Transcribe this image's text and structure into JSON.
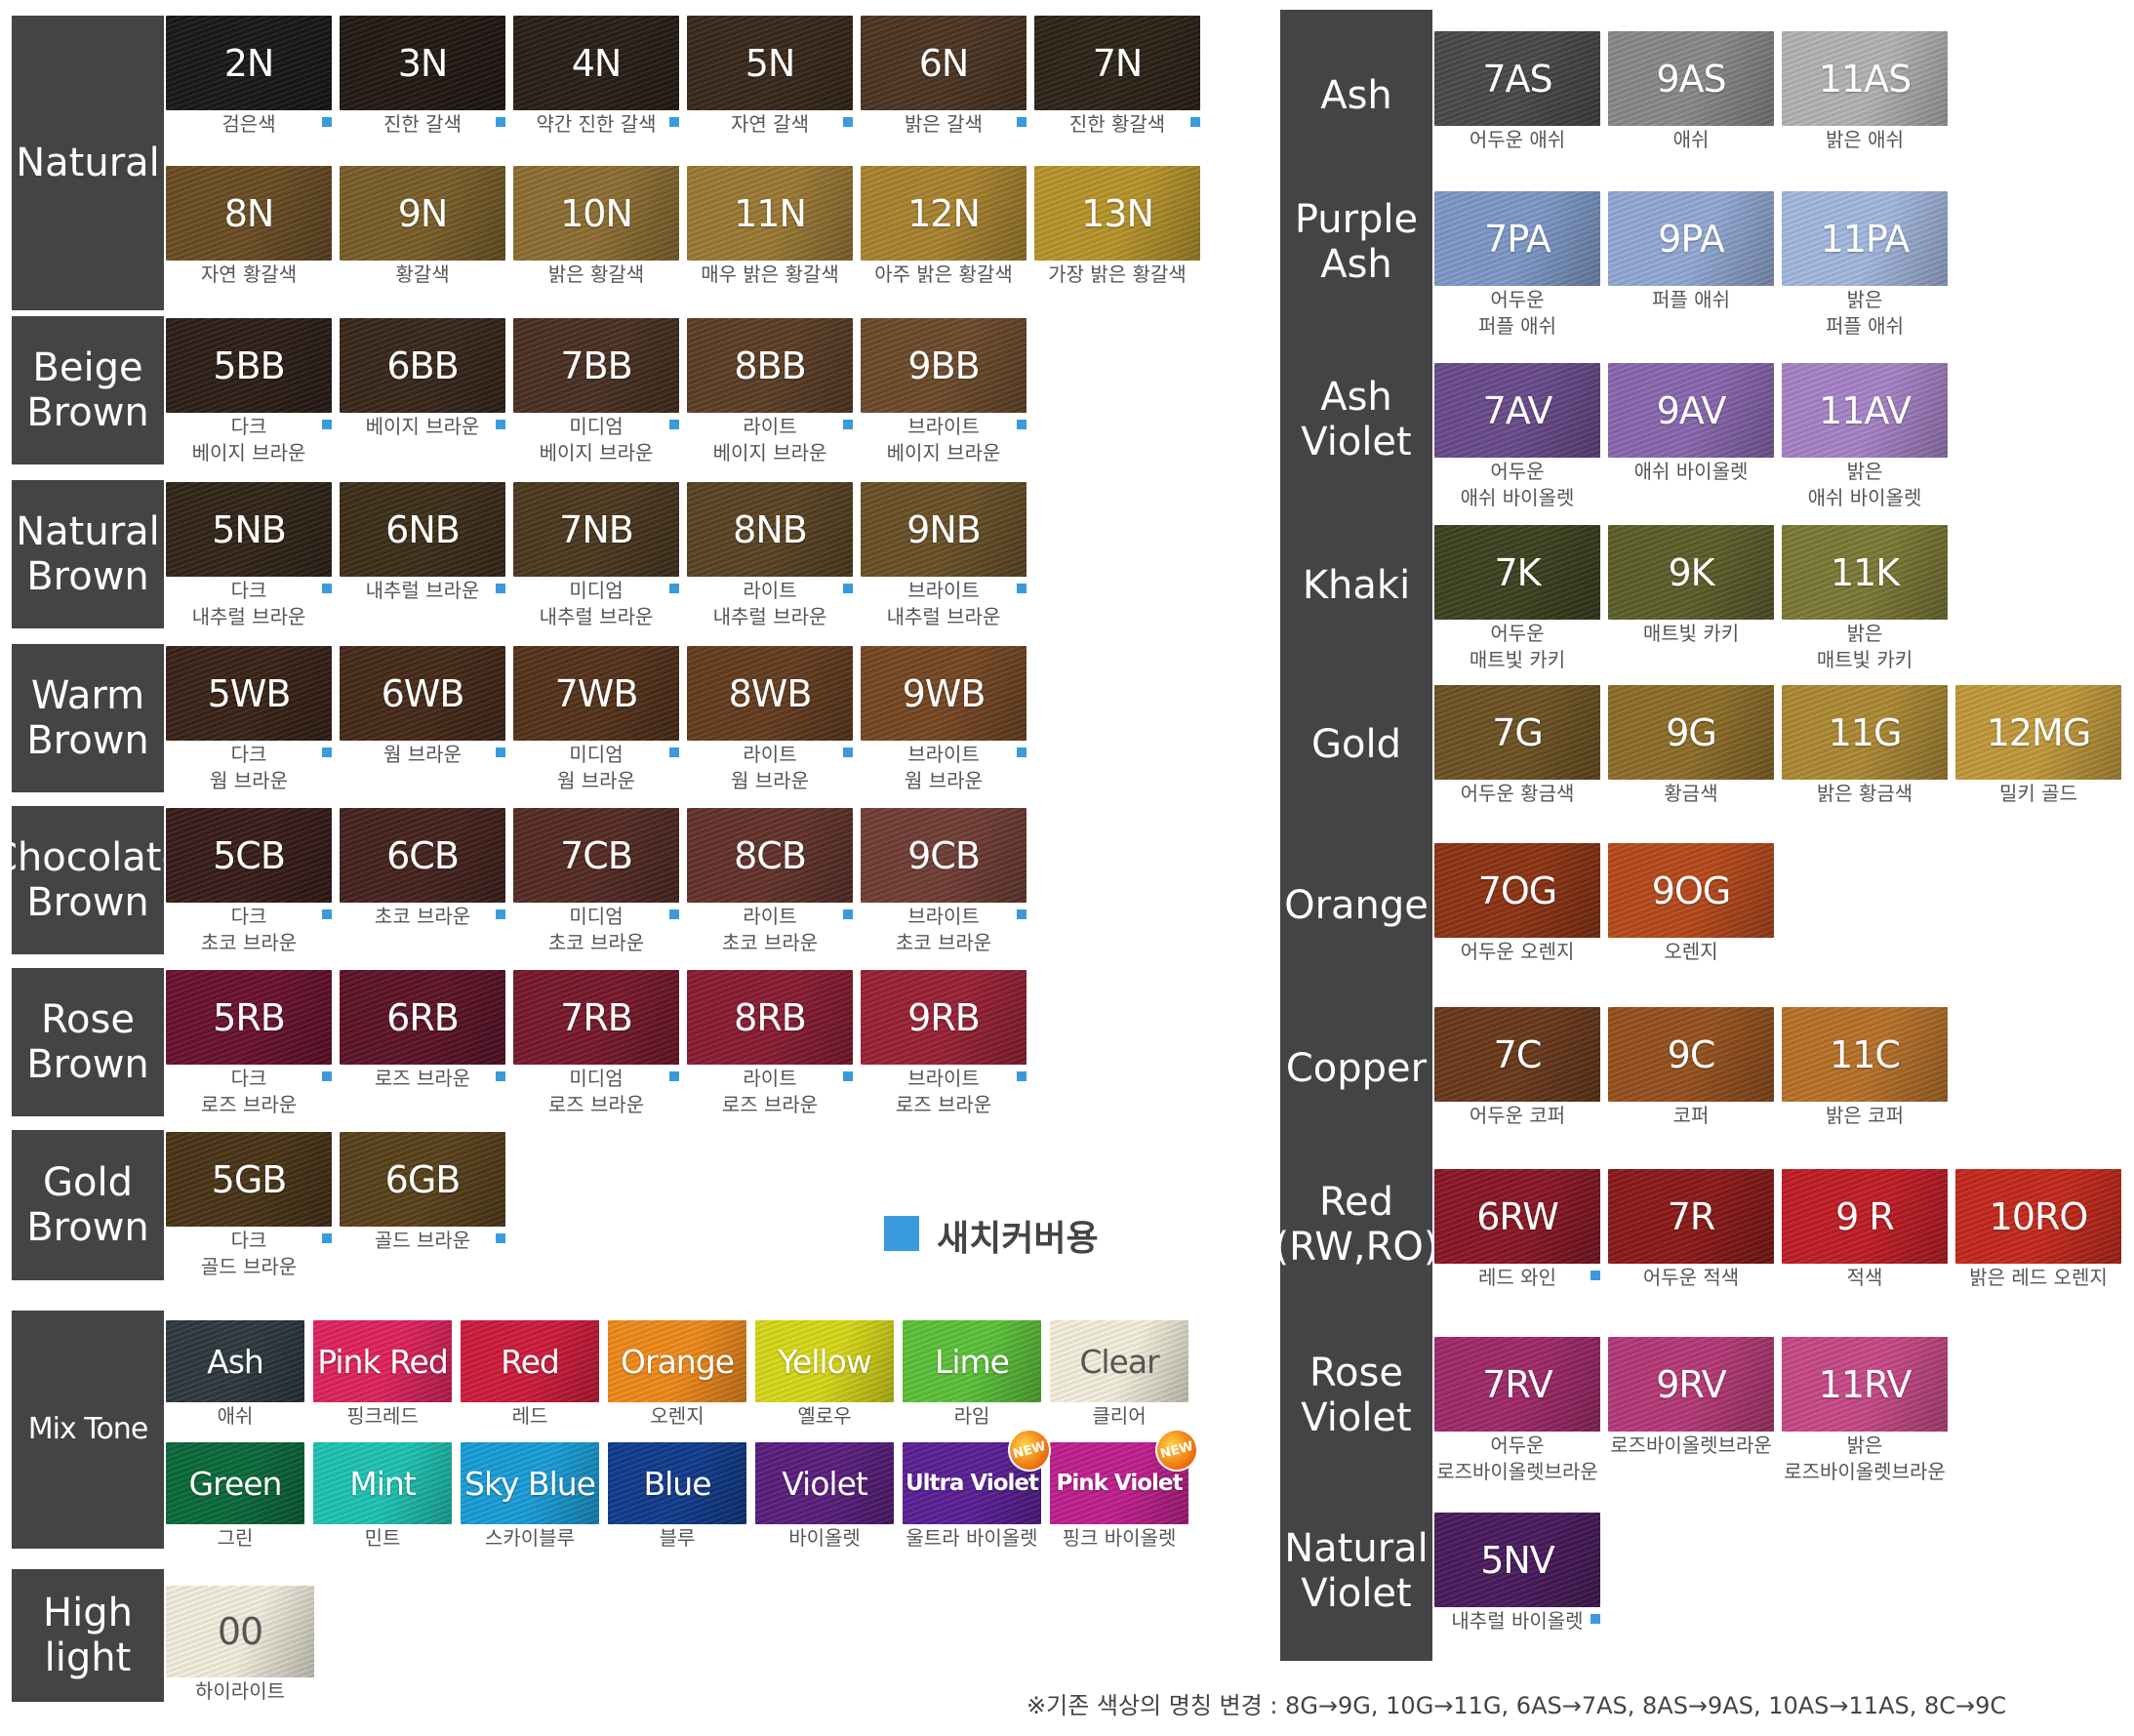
{
  "left_groups": [
    {
      "label": "Natural",
      "swatches": [
        {
          "code": "2N",
          "name": "검은색",
          "c": "#1a1a1a",
          "m": true
        },
        {
          "code": "3N",
          "name": "진한 갈색",
          "c": "#241a15",
          "m": true
        },
        {
          "code": "4N",
          "name": "약간 진한 갈색",
          "c": "#2c2018",
          "m": true
        },
        {
          "code": "5N",
          "name": "자연 갈색",
          "c": "#3b2a1c",
          "m": true
        },
        {
          "code": "6N",
          "name": "밝은 갈색",
          "c": "#4d3624",
          "m": true
        },
        {
          "code": "7N",
          "name": "진한 황갈색",
          "c": "#2f2519",
          "m": true
        },
        {
          "code": "8N",
          "name": "자연 황갈색",
          "c": "#6a4e25",
          "m": false
        },
        {
          "code": "9N",
          "name": "황갈색",
          "c": "#7a5f2a",
          "m": false
        },
        {
          "code": "10N",
          "name": "밝은 황갈색",
          "c": "#8e6f33",
          "m": false
        },
        {
          "code": "11N",
          "name": "매우 밝은 황갈색",
          "c": "#9c7a35",
          "m": false
        },
        {
          "code": "12N",
          "name": "아주 밝은 황갈색",
          "c": "#a98430",
          "m": false
        },
        {
          "code": "13N",
          "name": "가장 밝은 황갈색",
          "c": "#b8952c",
          "m": false
        }
      ]
    },
    {
      "label": "Beige\nBrown",
      "swatches": [
        {
          "code": "5BB",
          "name": "다크\n베이지 브라운",
          "c": "#2e2018",
          "m": true
        },
        {
          "code": "6BB",
          "name": "베이지 브라운",
          "c": "#3a281c",
          "m": true
        },
        {
          "code": "7BB",
          "name": "미디엄\n베이지 브라운",
          "c": "#4a3222",
          "m": true
        },
        {
          "code": "8BB",
          "name": "라이트\n베이지 브라운",
          "c": "#5c3f27",
          "m": true
        },
        {
          "code": "9BB",
          "name": "브라이트\n베이지 브라운",
          "c": "#6e4b2c",
          "m": true
        }
      ]
    },
    {
      "label": "Natural\nBrown",
      "swatches": [
        {
          "code": "5NB",
          "name": "다크\n내추럴 브라운",
          "c": "#33261a",
          "m": true
        },
        {
          "code": "6NB",
          "name": "내추럴 브라운",
          "c": "#3f2f1c",
          "m": true
        },
        {
          "code": "7NB",
          "name": "미디엄\n내추럴 브라운",
          "c": "#4c3920",
          "m": true
        },
        {
          "code": "8NB",
          "name": "라이트\n내추럴 브라운",
          "c": "#5a4424",
          "m": true
        },
        {
          "code": "9NB",
          "name": "브라이트\n내추럴 브라운",
          "c": "#6a5128",
          "m": true
        }
      ]
    },
    {
      "label": "Warm\nBrown",
      "swatches": [
        {
          "code": "5WB",
          "name": "다크\n웜 브라운",
          "c": "#3a2418",
          "m": true
        },
        {
          "code": "6WB",
          "name": "웜 브라운",
          "c": "#472b1a",
          "m": true
        },
        {
          "code": "7WB",
          "name": "미디엄\n웜 브라운",
          "c": "#56331c",
          "m": true
        },
        {
          "code": "8WB",
          "name": "라이트\n웜 브라운",
          "c": "#653d20",
          "m": true
        },
        {
          "code": "9WB",
          "name": "브라이트\n웜 브라운",
          "c": "#764824",
          "m": true
        }
      ]
    },
    {
      "label": "Chocolate\nBrown",
      "swatches": [
        {
          "code": "5CB",
          "name": "다크\n초코 브라운",
          "c": "#3a1e1a",
          "m": true
        },
        {
          "code": "6CB",
          "name": "초코 브라운",
          "c": "#47241f",
          "m": true
        },
        {
          "code": "7CB",
          "name": "미디엄\n초코 브라운",
          "c": "#552c25",
          "m": true
        },
        {
          "code": "8CB",
          "name": "라이트\n초코 브라운",
          "c": "#63342c",
          "m": true
        },
        {
          "code": "9CB",
          "name": "브라이트\n초코 브라운",
          "c": "#713f36",
          "m": true
        }
      ]
    },
    {
      "label": "Rose\nBrown",
      "swatches": [
        {
          "code": "5RB",
          "name": "다크\n로즈 브라운",
          "c": "#6b1230",
          "m": true
        },
        {
          "code": "6RB",
          "name": "로즈 브라운",
          "c": "#5e1429",
          "m": true
        },
        {
          "code": "7RB",
          "name": "미디엄\n로즈 브라운",
          "c": "#781a2c",
          "m": true
        },
        {
          "code": "8RB",
          "name": "라이트\n로즈 브라운",
          "c": "#8a1d33",
          "m": true
        },
        {
          "code": "9RB",
          "name": "브라이트\n로즈 브라운",
          "c": "#9a2236",
          "m": true
        }
      ]
    },
    {
      "label": "Gold\nBrown",
      "swatches": [
        {
          "code": "5GB",
          "name": "다크\n골드 브라운",
          "c": "#4a3518",
          "m": true
        },
        {
          "code": "6GB",
          "name": "골드 브라운",
          "c": "#5a421c",
          "m": true
        }
      ]
    }
  ],
  "legend": {
    "text": "새치커버용"
  },
  "mix": {
    "label": "Mix Tone",
    "swatches": [
      {
        "code": "Ash",
        "name": "애쉬",
        "c": "#2e3a40"
      },
      {
        "code": "Pink Red",
        "name": "핑크레드",
        "c": "#e0245f"
      },
      {
        "code": "Red",
        "name": "레드",
        "c": "#d01c3c"
      },
      {
        "code": "Orange",
        "name": "오렌지",
        "c": "#f08a1c"
      },
      {
        "code": "Yellow",
        "name": "옐로우",
        "c": "#d8d81a"
      },
      {
        "code": "Lime",
        "name": "라임",
        "c": "#5cc23a"
      },
      {
        "code": "Clear",
        "name": "클리어",
        "c": "#f4f0dc",
        "light": true
      },
      {
        "code": "Green",
        "name": "그린",
        "c": "#0c6a3c"
      },
      {
        "code": "Mint",
        "name": "민트",
        "c": "#1fc4b4"
      },
      {
        "code": "Sky Blue",
        "name": "스카이블루",
        "c": "#1a9ed8"
      },
      {
        "code": "Blue",
        "name": "블루",
        "c": "#123c8c"
      },
      {
        "code": "Violet",
        "name": "바이올렛",
        "c": "#5a1f7e"
      },
      {
        "code": "Ultra Violet",
        "name": "울트라 바이올렛",
        "c": "#5b2096",
        "small": true,
        "isnew": true
      },
      {
        "code": "Pink Violet",
        "name": "핑크 바이올렛",
        "c": "#c0208e",
        "small": true,
        "isnew": true
      }
    ],
    "new_label": "NEW"
  },
  "highlight": {
    "label": "High\nlight",
    "swatch": {
      "code": "00",
      "name": "하이라이트",
      "c": "#f2efdf"
    }
  },
  "right_groups": [
    {
      "label": "Ash",
      "swatches": [
        {
          "code": "7AS",
          "name": "어두운 애쉬",
          "c": "#4a4a4a"
        },
        {
          "code": "9AS",
          "name": "애쉬",
          "c": "#8a8a8a"
        },
        {
          "code": "11AS",
          "name": "밝은 애쉬",
          "c": "#b4b4b4"
        }
      ]
    },
    {
      "label": "Purple\nAsh",
      "swatches": [
        {
          "code": "7PA",
          "name": "어두운\n퍼플 애쉬",
          "c": "#7f9ac8"
        },
        {
          "code": "9PA",
          "name": "퍼플 애쉬",
          "c": "#93aad6"
        },
        {
          "code": "11PA",
          "name": "밝은\n퍼플 애쉬",
          "c": "#a4b9e0"
        }
      ]
    },
    {
      "label": "Ash\nViolet",
      "swatches": [
        {
          "code": "7AV",
          "name": "어두운\n애쉬 바이올렛",
          "c": "#6a4c8c"
        },
        {
          "code": "9AV",
          "name": "애쉬 바이올렛",
          "c": "#8a68b0"
        },
        {
          "code": "11AV",
          "name": "밝은\n애쉬 바이올렛",
          "c": "#a784c8"
        }
      ]
    },
    {
      "label": "Khaki",
      "swatches": [
        {
          "code": "7K",
          "name": "어두운\n매트빛 카키",
          "c": "#3e4220"
        },
        {
          "code": "9K",
          "name": "매트빛 카키",
          "c": "#5e5f2c"
        },
        {
          "code": "11K",
          "name": "밝은\n매트빛 카키",
          "c": "#7d7a36"
        }
      ]
    },
    {
      "label": "Gold",
      "swatches": [
        {
          "code": "7G",
          "name": "어두운 황금색",
          "c": "#6f5424"
        },
        {
          "code": "9G",
          "name": "황금색",
          "c": "#8e6e2a"
        },
        {
          "code": "11G",
          "name": "밝은 황금색",
          "c": "#ad8a35"
        },
        {
          "code": "12MG",
          "name": "밀키 골드",
          "c": "#c29a3c"
        }
      ]
    },
    {
      "label": "Orange",
      "swatches": [
        {
          "code": "7OG",
          "name": "어두운 오렌지",
          "c": "#8e3414"
        },
        {
          "code": "9OG",
          "name": "오렌지",
          "c": "#b84a1c"
        }
      ]
    },
    {
      "label": "Copper",
      "swatches": [
        {
          "code": "7C",
          "name": "어두운 코퍼",
          "c": "#6a3a1c"
        },
        {
          "code": "9C",
          "name": "코퍼",
          "c": "#96521e"
        },
        {
          "code": "11C",
          "name": "밝은 코퍼",
          "c": "#b8722a"
        }
      ]
    },
    {
      "label": "Red\n(RW,RO)",
      "swatches": [
        {
          "code": "6RW",
          "name": "레드 와인",
          "c": "#8a1826",
          "m": true
        },
        {
          "code": "7R",
          "name": "어두운 적색",
          "c": "#8c1a1a"
        },
        {
          "code": "9 R",
          "name": "적색",
          "c": "#c21e26"
        },
        {
          "code": "10RO",
          "name": "밝은 레드 오렌지",
          "c": "#c62a1e"
        }
      ]
    },
    {
      "label": "Rose\nViolet",
      "swatches": [
        {
          "code": "7RV",
          "name": "어두운\n로즈바이올렛브라운",
          "c": "#a02a6a"
        },
        {
          "code": "9RV",
          "name": "로즈바이올렛브라운",
          "c": "#b63a78"
        },
        {
          "code": "11RV",
          "name": "밝은\n로즈바이올렛브라운",
          "c": "#c84a88"
        }
      ]
    },
    {
      "label": "Natural\nViolet",
      "swatches": [
        {
          "code": "5NV",
          "name": "내추럴 바이올렛",
          "c": "#4a1c5e",
          "m": true
        }
      ]
    }
  ],
  "footnote": "※기존 색상의 명칭 변경 : 8G→9G, 10G→11G, 6AS→7AS, 8AS→9AS, 10AS→11AS, 8C→9C"
}
